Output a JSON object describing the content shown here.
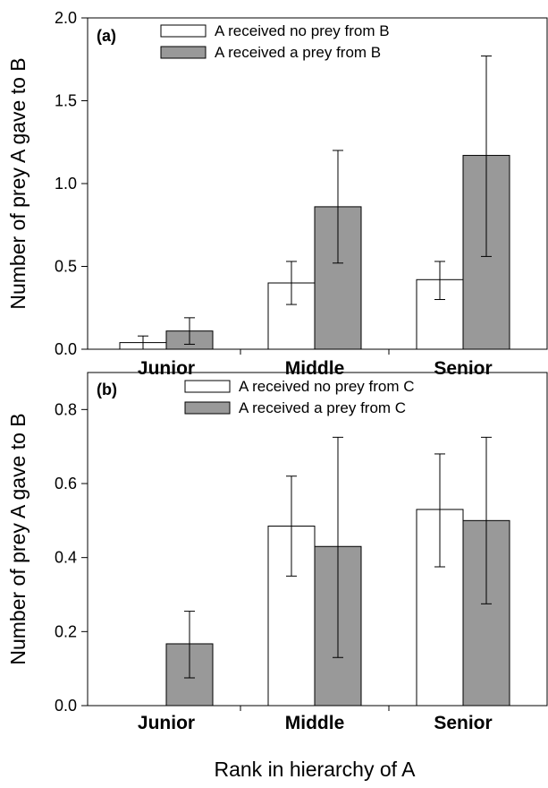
{
  "chart_data": [
    {
      "type": "bar",
      "panel_label": "(a)",
      "categories": [
        "Junior",
        "Middle",
        "Senior"
      ],
      "series": [
        {
          "name": "A received no prey from B",
          "color": "#ffffff",
          "values": [
            0.04,
            0.4,
            0.42
          ],
          "err_low": [
            0.0,
            0.27,
            0.3
          ],
          "err_high": [
            0.08,
            0.53,
            0.53
          ]
        },
        {
          "name": "A received a prey from B",
          "color": "#999999",
          "values": [
            0.11,
            0.86,
            1.17
          ],
          "err_low": [
            0.03,
            0.52,
            0.56
          ],
          "err_high": [
            0.19,
            1.2,
            1.77
          ]
        }
      ],
      "ylabel": "Number of prey A gave to B",
      "xlabel": "",
      "ylim": [
        0,
        2.0
      ],
      "yticks": [
        "0.0",
        "0.5",
        "1.0",
        "1.5",
        "2.0"
      ],
      "legend": "top-center",
      "grid": false
    },
    {
      "type": "bar",
      "panel_label": "(b)",
      "categories": [
        "Junior",
        "Middle",
        "Senior"
      ],
      "series": [
        {
          "name": "A received no prey from C",
          "color": "#ffffff",
          "values": [
            0.0,
            0.485,
            0.53
          ],
          "err_low": [
            null,
            0.35,
            0.375
          ],
          "err_high": [
            null,
            0.62,
            0.68
          ]
        },
        {
          "name": "A received a prey from C",
          "color": "#999999",
          "values": [
            0.167,
            0.43,
            0.5
          ],
          "err_low": [
            0.075,
            0.13,
            0.275
          ],
          "err_high": [
            0.255,
            0.725,
            0.725
          ]
        }
      ],
      "ylabel": "Number of prey A gave to B",
      "xlabel": "Rank in hierarchy of A",
      "ylim": [
        0,
        0.9
      ],
      "yticks": [
        "0.0",
        "0.2",
        "0.4",
        "0.6",
        "0.8"
      ],
      "legend": "top-center",
      "grid": false
    }
  ]
}
